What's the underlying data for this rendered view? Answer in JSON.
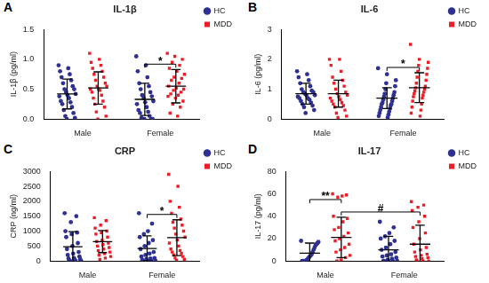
{
  "chart_data": [
    {
      "panel": "A",
      "type": "scatter",
      "title": "IL-1β",
      "y_label": "IL-1β (pg/ml)",
      "categories": [
        "Male",
        "Female"
      ],
      "ylim": [
        0,
        1.5
      ],
      "yticks": [
        {
          "value": 0,
          "label": "0.0"
        },
        {
          "value": 0.5,
          "label": "0.5"
        },
        {
          "value": 1,
          "label": "1.0"
        },
        {
          "value": 1.5,
          "label": "1.5"
        }
      ],
      "grid": false,
      "legend": "top right",
      "series": [
        {
          "name": "HC",
          "color": "#2e3192",
          "marker": "circle",
          "values": [
            [
              0.9,
              0.85,
              0.8,
              0.75,
              0.7,
              0.65,
              0.6,
              0.55,
              0.5,
              0.5,
              0.45,
              0.42,
              0.4,
              0.38,
              0.35,
              0.3,
              0.28,
              0.25,
              0.2,
              0.15,
              0.1,
              0.05,
              0.02,
              0.0
            ],
            [
              1.05,
              0.9,
              0.8,
              0.7,
              0.6,
              0.55,
              0.5,
              0.45,
              0.4,
              0.38,
              0.35,
              0.3,
              0.28,
              0.25,
              0.2,
              0.15,
              0.12,
              0.1,
              0.05,
              0.02,
              0.0,
              0.0,
              0.0,
              0.0
            ]
          ],
          "mean": [
            0.42,
            0.33
          ],
          "sd": [
            0.25,
            0.27
          ]
        },
        {
          "name": "MDD",
          "color": "#ee1c25",
          "marker": "square",
          "values": [
            [
              1.1,
              1.0,
              0.95,
              0.9,
              0.85,
              0.8,
              0.75,
              0.7,
              0.65,
              0.6,
              0.55,
              0.55,
              0.5,
              0.5,
              0.48,
              0.45,
              0.4,
              0.35,
              0.3,
              0.25,
              0.2,
              0.12,
              0.05,
              0.0
            ],
            [
              1.1,
              1.05,
              1.0,
              0.95,
              0.9,
              0.85,
              0.8,
              0.75,
              0.7,
              0.68,
              0.65,
              0.6,
              0.55,
              0.52,
              0.5,
              0.48,
              0.45,
              0.42,
              0.4,
              0.38,
              0.35,
              0.3,
              0.25,
              0.2,
              0.1,
              0.05
            ]
          ],
          "mean": [
            0.52,
            0.55
          ],
          "sd": [
            0.27,
            0.28
          ]
        }
      ],
      "annotations": [
        {
          "between": [
            [
              "Female",
              "HC"
            ],
            [
              "Female",
              "MDD"
            ]
          ],
          "text": "*"
        }
      ]
    },
    {
      "panel": "B",
      "type": "scatter",
      "title": "IL-6",
      "y_label": "IL-6 (pg/ml)",
      "categories": [
        "Male",
        "Female"
      ],
      "ylim": [
        0,
        3
      ],
      "yticks": [
        0,
        1,
        2,
        3
      ],
      "grid": false,
      "legend": "top right",
      "series": [
        {
          "name": "HC",
          "color": "#2e3192",
          "marker": "circle",
          "values": [
            [
              1.6,
              1.5,
              1.4,
              1.3,
              1.2,
              1.1,
              1.0,
              0.95,
              0.9,
              0.9,
              0.85,
              0.8,
              0.8,
              0.75,
              0.7,
              0.7,
              0.65,
              0.6,
              0.55,
              0.5,
              0.45,
              0.4,
              0.3,
              0.2
            ],
            [
              1.7,
              1.5,
              1.3,
              1.2,
              1.1,
              1.0,
              0.9,
              0.85,
              0.8,
              0.75,
              0.7,
              0.65,
              0.6,
              0.55,
              0.5,
              0.5,
              0.45,
              0.4,
              0.35,
              0.3,
              0.25,
              0.2,
              0.15,
              0.1,
              0.05
            ]
          ],
          "mean": [
            0.85,
            0.7
          ],
          "sd": [
            0.35,
            0.35
          ]
        },
        {
          "name": "MDD",
          "color": "#ee1c25",
          "marker": "square",
          "values": [
            [
              2.0,
              2.0,
              1.8,
              1.6,
              1.4,
              1.3,
              1.2,
              1.1,
              1.0,
              0.9,
              0.85,
              0.8,
              0.75,
              0.7,
              0.65,
              0.6,
              0.55,
              0.5,
              0.45,
              0.4,
              0.3,
              0.2,
              0.1,
              0.05
            ],
            [
              2.5,
              2.0,
              1.9,
              1.8,
              1.7,
              1.6,
              1.5,
              1.4,
              1.3,
              1.2,
              1.1,
              1.05,
              1.0,
              0.95,
              0.9,
              0.85,
              0.8,
              0.75,
              0.7,
              0.6,
              0.5,
              0.4,
              0.3,
              0.2,
              0.1
            ]
          ],
          "mean": [
            0.85,
            1.05
          ],
          "sd": [
            0.45,
            0.5
          ]
        }
      ],
      "annotations": [
        {
          "between": [
            [
              "Female",
              "HC"
            ],
            [
              "Female",
              "MDD"
            ]
          ],
          "text": "*"
        }
      ]
    },
    {
      "panel": "C",
      "type": "scatter",
      "title": "CRP",
      "y_label": "CRP (ng/ml)",
      "categories": [
        "Male",
        "Female"
      ],
      "ylim": [
        0,
        3000
      ],
      "yticks": [
        0,
        500,
        1000,
        1500,
        2000,
        2500,
        3000
      ],
      "grid": false,
      "legend": "top right",
      "series": [
        {
          "name": "HC",
          "color": "#2e3192",
          "marker": "circle",
          "values": [
            [
              1600,
              1500,
              1300,
              1000,
              950,
              900,
              800,
              600,
              500,
              400,
              300,
              250,
              200,
              150,
              100,
              80,
              60,
              40,
              20,
              10,
              5,
              0
            ],
            [
              1600,
              1250,
              1000,
              900,
              800,
              700,
              600,
              500,
              400,
              300,
              250,
              200,
              150,
              100,
              80,
              60,
              40,
              20,
              10,
              5,
              0
            ]
          ],
          "mean": [
            480,
            420
          ],
          "sd": [
            500,
            420
          ]
        },
        {
          "name": "MDD",
          "color": "#ee1c25",
          "marker": "square",
          "values": [
            [
              1450,
              1350,
              1200,
              1100,
              1000,
              950,
              900,
              800,
              700,
              650,
              600,
              550,
              500,
              450,
              400,
              350,
              300,
              250,
              200,
              150,
              100,
              50
            ],
            [
              2900,
              2500,
              2000,
              1800,
              1600,
              1400,
              1300,
              1200,
              1100,
              1000,
              900,
              800,
              700,
              600,
              500,
              400,
              350,
              300,
              250,
              200,
              150,
              100,
              50,
              20
            ]
          ],
          "mean": [
            650,
            780
          ],
          "sd": [
            370,
            600
          ]
        }
      ],
      "annotations": [
        {
          "between": [
            [
              "Female",
              "HC"
            ],
            [
              "Female",
              "MDD"
            ]
          ],
          "text": "*"
        }
      ]
    },
    {
      "panel": "D",
      "type": "scatter",
      "title": "IL-17",
      "y_label": "IL-17 (pg/ml)",
      "categories": [
        "Male",
        "Female"
      ],
      "ylim": [
        0,
        80
      ],
      "yticks": [
        0,
        20,
        40,
        60,
        80
      ],
      "grid": false,
      "legend": "top right",
      "series": [
        {
          "name": "HC",
          "color": "#2e3192",
          "marker": "circle",
          "values": [
            [
              18,
              17,
              16,
              15,
              14,
              12,
              10,
              8,
              6,
              5,
              4,
              3,
              2,
              1,
              0,
              0,
              0,
              0,
              0
            ],
            [
              35,
              30,
              25,
              22,
              20,
              18,
              15,
              12,
              10,
              8,
              6,
              5,
              4,
              3,
              2,
              1,
              0,
              0,
              0,
              0,
              0
            ]
          ],
          "mean": [
            7,
            10
          ],
          "sd": [
            9,
            12
          ]
        },
        {
          "name": "MDD",
          "color": "#ee1c25",
          "marker": "square",
          "values": [
            [
              60,
              59,
              58,
              57,
              40,
              38,
              35,
              30,
              28,
              25,
              22,
              20,
              18,
              15,
              12,
              10,
              8,
              5,
              3,
              1,
              0
            ],
            [
              53,
              50,
              48,
              45,
              40,
              35,
              30,
              25,
              20,
              15,
              12,
              10,
              8,
              6,
              5,
              4,
              3,
              2,
              1,
              0,
              0,
              0
            ]
          ],
          "mean": [
            21,
            15
          ],
          "sd": [
            18,
            17
          ]
        }
      ],
      "annotations": [
        {
          "between": [
            [
              "Male",
              "MDD"
            ],
            [
              "Female",
              "MDD"
            ]
          ],
          "text": "#"
        },
        {
          "between": [
            [
              "Male",
              "HC"
            ],
            [
              "Male",
              "MDD"
            ]
          ],
          "text": "**"
        }
      ]
    }
  ]
}
